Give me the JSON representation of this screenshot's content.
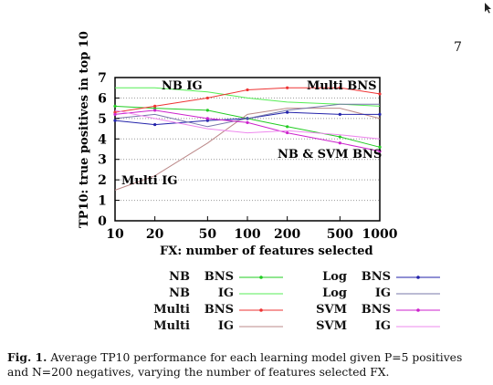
{
  "page_number": "7",
  "chart_data": {
    "type": "line",
    "ylabel": "TP10:   true positives in top 10",
    "xlabel": "FX:   number of features selected",
    "x": [
      10,
      20,
      50,
      100,
      200,
      500,
      1000
    ],
    "x_scale": "log",
    "xticks": [
      "10",
      "20",
      "50",
      "100",
      "200",
      "500",
      "1000"
    ],
    "ylim": [
      0,
      7
    ],
    "yticks": [
      "0",
      "1",
      "2",
      "3",
      "4",
      "5",
      "6",
      "7"
    ],
    "grid": "horizontal dotted",
    "annotations": [
      "NB IG",
      "Multi BNS",
      "NB & SVM  BNS",
      "Multi  IG"
    ],
    "series": [
      {
        "name": "NB  BNS",
        "color": "#22cc22",
        "marker": true,
        "values": [
          5.6,
          5.5,
          5.4,
          5.0,
          4.6,
          4.1,
          3.6
        ]
      },
      {
        "name": "NB  IG",
        "color": "#55ee55",
        "marker": false,
        "values": [
          6.5,
          6.5,
          6.3,
          6.0,
          5.8,
          5.7,
          5.6
        ]
      },
      {
        "name": "Multi  BNS",
        "color": "#ee3333",
        "marker": true,
        "values": [
          5.3,
          5.6,
          6.0,
          6.4,
          6.5,
          6.5,
          6.2
        ]
      },
      {
        "name": "Multi  IG",
        "color": "#bb8888",
        "marker": false,
        "values": [
          1.5,
          2.2,
          3.8,
          5.2,
          5.5,
          5.5,
          5.0
        ]
      },
      {
        "name": "Log  BNS",
        "color": "#2222aa",
        "marker": true,
        "values": [
          4.9,
          4.7,
          4.9,
          5.0,
          5.3,
          5.2,
          5.2
        ]
      },
      {
        "name": "Log  IG",
        "color": "#7777aa",
        "marker": false,
        "values": [
          5.0,
          5.2,
          4.6,
          5.0,
          5.4,
          5.7,
          5.7
        ]
      },
      {
        "name": "SVM  BNS",
        "color": "#cc22cc",
        "marker": true,
        "values": [
          5.2,
          5.4,
          5.0,
          4.8,
          4.3,
          3.8,
          3.4
        ]
      },
      {
        "name": "SVM  IG",
        "color": "#ee88ee",
        "marker": false,
        "values": [
          5.4,
          5.0,
          4.5,
          4.3,
          4.4,
          4.2,
          4.0
        ]
      }
    ]
  },
  "legend": {
    "left": [
      {
        "model": "NB",
        "feat": "BNS"
      },
      {
        "model": "NB",
        "feat": "IG"
      },
      {
        "model": "Multi",
        "feat": "BNS"
      },
      {
        "model": "Multi",
        "feat": "IG"
      }
    ],
    "right": [
      {
        "model": "Log",
        "feat": "BNS"
      },
      {
        "model": "Log",
        "feat": "IG"
      },
      {
        "model": "SVM",
        "feat": "BNS"
      },
      {
        "model": "SVM",
        "feat": "IG"
      }
    ]
  },
  "caption": {
    "label": "Fig. 1.",
    "text": "Average TP10 performance for each learning model given P=5 positives and N=200 negatives, varying the number of features selected FX."
  }
}
